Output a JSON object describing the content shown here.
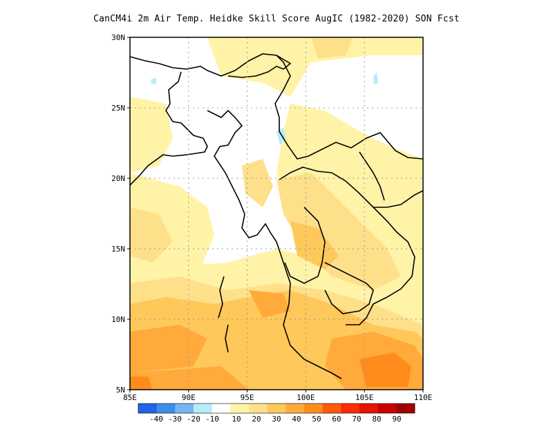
{
  "title": "CanCM4i  2m Air Temp. Heidke Skill Score AugIC (1982-2020) SON Fcst",
  "map": {
    "lat_ticks": [
      "30N",
      "25N",
      "20N",
      "15N",
      "10N",
      "5N"
    ],
    "lon_ticks": [
      "85E",
      "90E",
      "95E",
      "100E",
      "105E",
      "110E"
    ],
    "extent": {
      "lon": [
        85,
        110
      ],
      "lat": [
        5,
        30
      ]
    },
    "grid": true
  },
  "colorbar": {
    "colors": [
      "#1f63e6",
      "#3c8ee8",
      "#78b5f0",
      "#b3eef9",
      "#ffffff",
      "#fff3a8",
      "#ffe08a",
      "#ffc85a",
      "#ffaa3a",
      "#ff8c1a",
      "#ff5a0a",
      "#ff2a00",
      "#e61400",
      "#c80000",
      "#a00000"
    ],
    "labels": [
      "-40",
      "-30",
      "-20",
      "-10",
      "10",
      "20",
      "30",
      "40",
      "50",
      "60",
      "70",
      "80",
      "90"
    ]
  }
}
